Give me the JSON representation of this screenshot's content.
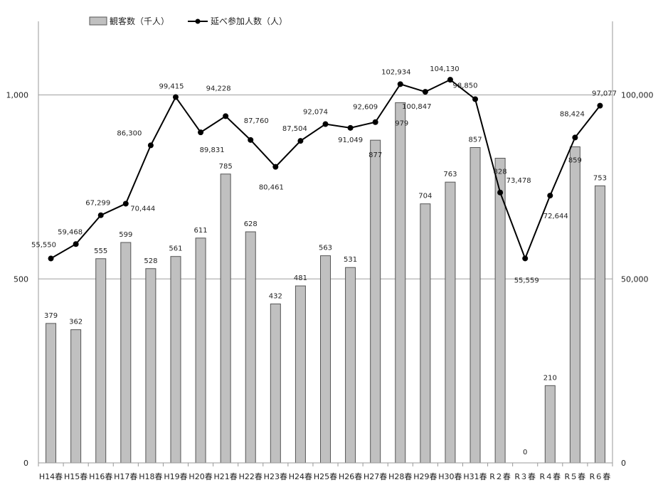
{
  "chart_data": {
    "type": "bar",
    "categories": [
      "H14春",
      "H15春",
      "H16春",
      "H17春",
      "H18春",
      "H19春",
      "H20春",
      "H21春",
      "H22春",
      "H23春",
      "H24春",
      "H25春",
      "H26春",
      "H27春",
      "H28春",
      "H29春",
      "H30春",
      "H31春",
      "R２春",
      "R３春",
      "R４春",
      "R５春",
      "R６春"
    ],
    "series": [
      {
        "name": "観客数（千人）",
        "type": "bar",
        "axis": "left",
        "color": "#c0c0c0",
        "values": [
          379,
          362,
          555,
          599,
          528,
          561,
          611,
          785,
          628,
          432,
          481,
          563,
          531,
          877,
          979,
          704,
          763,
          857,
          828,
          0,
          210,
          859,
          753
        ],
        "labels": [
          "379",
          "362",
          "555",
          "599",
          "528",
          "561",
          "611",
          "785",
          "628",
          "432",
          "481",
          "563",
          "531",
          "877",
          "979",
          "704",
          "763",
          "857",
          "828",
          "0",
          "210",
          "859",
          "753"
        ]
      },
      {
        "name": "延べ参加人数（人）",
        "type": "line",
        "axis": "right",
        "color": "#000000",
        "values": [
          55550,
          59468,
          67299,
          70444,
          86300,
          99415,
          89831,
          94228,
          87760,
          80461,
          87504,
          92074,
          91049,
          92609,
          102934,
          100847,
          104130,
          98850,
          73478,
          55559,
          72644,
          88424,
          97077
        ],
        "labels": [
          "55,550",
          "59,468",
          "67,299",
          "70,444",
          "86,300",
          "99,415",
          "89,831",
          "94,228",
          "87,760",
          "80,461",
          "87,504",
          "92,074",
          "91,049",
          "92,609",
          "102,934",
          "100,847",
          "104,130",
          "98,850",
          "73,478",
          "55,559",
          "72,644",
          "88,424",
          "97,077"
        ]
      }
    ],
    "y_left": {
      "min": 0,
      "max": 1200,
      "ticks": [
        0,
        500,
        1000
      ],
      "tick_labels": [
        "0",
        "500",
        "1,000"
      ]
    },
    "y_right": {
      "min": 0,
      "max": 120000,
      "ticks": [
        0,
        50000,
        100000
      ],
      "tick_labels": [
        "0",
        "50,000",
        "100,000"
      ]
    },
    "gridlines": true,
    "legend_position": "top-left",
    "title": "",
    "xlabel": "",
    "ylabel": ""
  }
}
